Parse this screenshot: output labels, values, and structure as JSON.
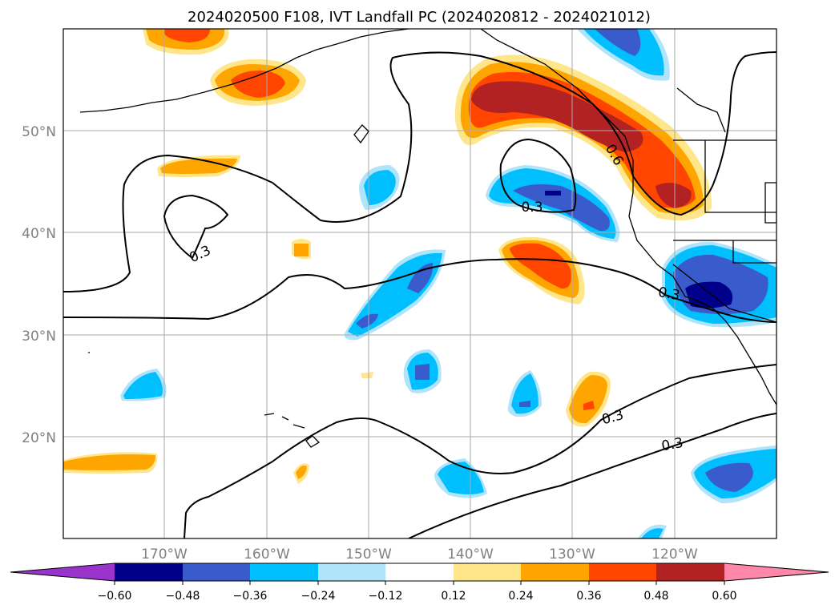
{
  "title": "2024020500 F108, IVT Landfall PC (2024020812 - 2024021012)",
  "map": {
    "lon_range": [
      -180,
      -110
    ],
    "lat_range": [
      10,
      60
    ],
    "lat_ticks": [
      {
        "value": 50,
        "label": "50°N"
      },
      {
        "value": 40,
        "label": "40°N"
      },
      {
        "value": 30,
        "label": "30°N"
      },
      {
        "value": 20,
        "label": "20°N"
      }
    ],
    "lon_ticks": [
      {
        "value": -170,
        "label": "170°W"
      },
      {
        "value": -160,
        "label": "160°W"
      },
      {
        "value": -150,
        "label": "150°W"
      },
      {
        "value": -140,
        "label": "140°W"
      },
      {
        "value": -130,
        "label": "130°W"
      },
      {
        "value": -120,
        "label": "120°W"
      }
    ],
    "grid_color": "#aaaaaa",
    "tick_label_color": "#808080",
    "contour_labels": [
      "0.3",
      "0.3",
      "0.3",
      "0.6",
      "0.3",
      "0.3",
      "0.3"
    ]
  },
  "colorbar": {
    "ticks": [
      "−0.60",
      "−0.48",
      "−0.36",
      "−0.24",
      "−0.12",
      "0.12",
      "0.24",
      "0.36",
      "0.48",
      "0.60"
    ],
    "colors": [
      "#9933cc",
      "#00008b",
      "#3a5bcc",
      "#00bfff",
      "#b0e4fa",
      "#ffffff",
      "#ffe68a",
      "#ffa500",
      "#ff4500",
      "#b22222",
      "#ff88aa"
    ]
  },
  "palette": {
    "neg_light": "#b0e4fa",
    "neg_mid": "#00bfff",
    "neg_strong": "#3a5bcc",
    "neg_max": "#00008b",
    "pos_light": "#ffe68a",
    "pos_mid": "#ffa500",
    "pos_strong": "#ff4500",
    "pos_max": "#b22222"
  }
}
